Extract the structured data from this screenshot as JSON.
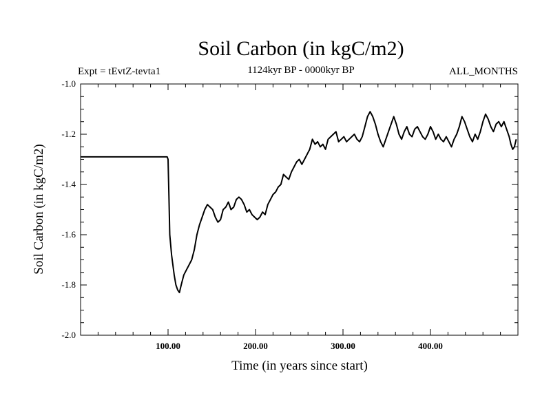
{
  "chart_data": {
    "type": "line",
    "title": "Soil Carbon (in kgC/m2)",
    "experiment": "Expt = tEvtZ-tevta1",
    "period": "1124kyr BP - 0000kyr BP",
    "months": "ALL_MONTHS",
    "xlabel": "Time (in years since start)",
    "ylabel": "Soil Carbon (in kgC/m2)",
    "xlim": [
      0,
      500
    ],
    "ylim": [
      -2.0,
      -1.0
    ],
    "xticks": [
      {
        "value": 100,
        "label": "100.00"
      },
      {
        "value": 200,
        "label": "200.00"
      },
      {
        "value": 300,
        "label": "300.00"
      },
      {
        "value": 400,
        "label": "400.00"
      }
    ],
    "yticks": [
      {
        "value": -1.0,
        "label": "-1.0"
      },
      {
        "value": -1.2,
        "label": "-1.2"
      },
      {
        "value": -1.4,
        "label": "-1.4"
      },
      {
        "value": -1.6,
        "label": "-1.6"
      },
      {
        "value": -1.8,
        "label": "-1.8"
      },
      {
        "value": -2.0,
        "label": "-2.0"
      }
    ],
    "series": [
      {
        "name": "Soil Carbon",
        "color": "#000000",
        "x": [
          0,
          99,
          100,
          101,
          102,
          104,
          107,
          109,
          111,
          113,
          115,
          118,
          121,
          124,
          127,
          130,
          133,
          136,
          139,
          142,
          145,
          148,
          151,
          154,
          157,
          160,
          163,
          166,
          169,
          172,
          175,
          178,
          181,
          184,
          187,
          190,
          193,
          196,
          199,
          202,
          205,
          208,
          211,
          214,
          217,
          220,
          223,
          226,
          229,
          232,
          235,
          238,
          241,
          244,
          247,
          250,
          253,
          256,
          259,
          262,
          265,
          268,
          271,
          274,
          277,
          280,
          283,
          286,
          289,
          292,
          295,
          298,
          301,
          304,
          307,
          310,
          313,
          316,
          319,
          322,
          325,
          328,
          331,
          334,
          337,
          340,
          343,
          346,
          349,
          352,
          355,
          358,
          361,
          364,
          367,
          370,
          373,
          376,
          379,
          382,
          385,
          388,
          391,
          394,
          397,
          400,
          403,
          406,
          409,
          412,
          415,
          418,
          421,
          424,
          427,
          430,
          433,
          436,
          439,
          442,
          445,
          448,
          451,
          454,
          457,
          460,
          463,
          466,
          469,
          472,
          475,
          478,
          481,
          484,
          487,
          490,
          492,
          494,
          496,
          498
        ],
        "y": [
          -1.29,
          -1.29,
          -1.3,
          -1.45,
          -1.6,
          -1.68,
          -1.76,
          -1.8,
          -1.82,
          -1.83,
          -1.8,
          -1.76,
          -1.74,
          -1.72,
          -1.7,
          -1.66,
          -1.6,
          -1.56,
          -1.53,
          -1.5,
          -1.48,
          -1.49,
          -1.5,
          -1.53,
          -1.55,
          -1.54,
          -1.5,
          -1.49,
          -1.47,
          -1.5,
          -1.49,
          -1.46,
          -1.45,
          -1.46,
          -1.48,
          -1.51,
          -1.5,
          -1.52,
          -1.53,
          -1.54,
          -1.53,
          -1.51,
          -1.52,
          -1.48,
          -1.46,
          -1.44,
          -1.43,
          -1.41,
          -1.4,
          -1.36,
          -1.37,
          -1.38,
          -1.35,
          -1.33,
          -1.31,
          -1.3,
          -1.32,
          -1.3,
          -1.28,
          -1.26,
          -1.22,
          -1.24,
          -1.23,
          -1.25,
          -1.24,
          -1.26,
          -1.22,
          -1.21,
          -1.2,
          -1.19,
          -1.23,
          -1.22,
          -1.21,
          -1.23,
          -1.22,
          -1.21,
          -1.2,
          -1.22,
          -1.23,
          -1.21,
          -1.17,
          -1.13,
          -1.11,
          -1.13,
          -1.16,
          -1.2,
          -1.23,
          -1.25,
          -1.22,
          -1.19,
          -1.16,
          -1.13,
          -1.16,
          -1.2,
          -1.22,
          -1.19,
          -1.17,
          -1.2,
          -1.21,
          -1.18,
          -1.17,
          -1.19,
          -1.21,
          -1.22,
          -1.2,
          -1.17,
          -1.19,
          -1.22,
          -1.2,
          -1.22,
          -1.23,
          -1.21,
          -1.23,
          -1.25,
          -1.22,
          -1.2,
          -1.17,
          -1.13,
          -1.15,
          -1.18,
          -1.21,
          -1.23,
          -1.2,
          -1.22,
          -1.19,
          -1.15,
          -1.12,
          -1.14,
          -1.17,
          -1.19,
          -1.16,
          -1.15,
          -1.17,
          -1.15,
          -1.18,
          -1.21,
          -1.24,
          -1.26,
          -1.25,
          -1.22
        ]
      }
    ]
  }
}
